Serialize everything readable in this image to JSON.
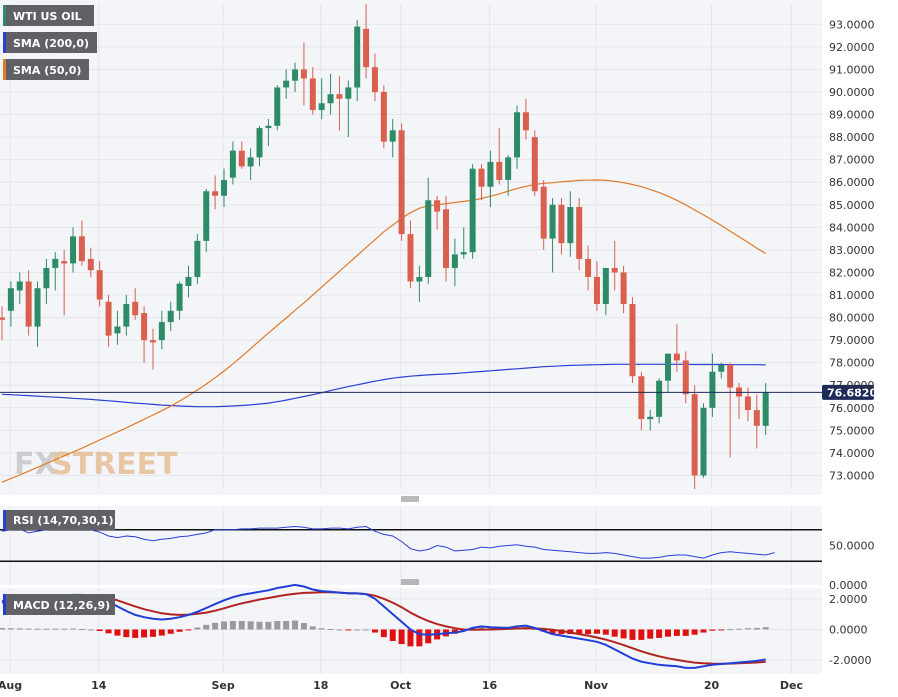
{
  "legend": {
    "instrument": "WTI US OIL",
    "sma200": "SMA (200,0)",
    "sma50": "SMA (50,0)",
    "rsi": "RSI (14,70,30,1)",
    "macd": "MACD (12,26,9)"
  },
  "watermark": {
    "part1": "FX",
    "part2": "STREET"
  },
  "current_price": "76.6820",
  "colors": {
    "up": "#2e8b68",
    "down": "#d9604e",
    "sma200": "#2a3fd4",
    "sma50": "#e07a2a",
    "rsi": "#2a3fd4",
    "macd": "#1f3fd8",
    "signal": "#b2251f",
    "hist_pos": "#9a9a9a",
    "hist_neg": "#e01010",
    "price_tag": "#1e2a5a"
  },
  "x_ticks": [
    {
      "label": "Aug",
      "index": 0
    },
    {
      "label": "14",
      "index": 10
    },
    {
      "label": "Sep",
      "index": 24
    },
    {
      "label": "18",
      "index": 35
    },
    {
      "label": "Oct",
      "index": 44
    },
    {
      "label": "16",
      "index": 54
    },
    {
      "label": "Nov",
      "index": 66
    },
    {
      "label": "20",
      "index": 79
    },
    {
      "label": "Dec",
      "index": 88
    }
  ],
  "chart_data": [
    {
      "type": "candlestick",
      "title": "WTI US OIL",
      "ylim": [
        72.4,
        93.9
      ],
      "y_ticks": [
        "93.0000",
        "92.0000",
        "91.0000",
        "90.0000",
        "89.0000",
        "88.0000",
        "87.0000",
        "86.0000",
        "85.0000",
        "84.0000",
        "83.0000",
        "82.0000",
        "81.0000",
        "80.0000",
        "79.0000",
        "78.0000",
        "77.0000",
        "76.0000",
        "75.0000",
        "74.0000",
        "73.0000"
      ],
      "candles": [
        {
          "o": 80.0,
          "h": 80.5,
          "l": 79.0,
          "c": 79.9
        },
        {
          "o": 80.3,
          "h": 81.6,
          "l": 79.6,
          "c": 81.3
        },
        {
          "o": 81.2,
          "h": 82.0,
          "l": 80.6,
          "c": 81.6
        },
        {
          "o": 81.6,
          "h": 82.1,
          "l": 79.2,
          "c": 79.6
        },
        {
          "o": 79.6,
          "h": 81.6,
          "l": 78.7,
          "c": 81.3
        },
        {
          "o": 81.3,
          "h": 82.6,
          "l": 80.6,
          "c": 82.2
        },
        {
          "o": 82.2,
          "h": 82.9,
          "l": 81.2,
          "c": 82.6
        },
        {
          "o": 82.5,
          "h": 83.0,
          "l": 80.1,
          "c": 82.4
        },
        {
          "o": 82.4,
          "h": 84.0,
          "l": 82.0,
          "c": 83.6
        },
        {
          "o": 83.6,
          "h": 84.3,
          "l": 82.3,
          "c": 82.5
        },
        {
          "o": 82.6,
          "h": 83.1,
          "l": 81.8,
          "c": 82.1
        },
        {
          "o": 82.1,
          "h": 82.5,
          "l": 80.5,
          "c": 80.8
        },
        {
          "o": 80.7,
          "h": 81.0,
          "l": 78.7,
          "c": 79.2
        },
        {
          "o": 79.3,
          "h": 80.3,
          "l": 78.8,
          "c": 79.6
        },
        {
          "o": 79.6,
          "h": 81.0,
          "l": 79.2,
          "c": 80.6
        },
        {
          "o": 80.7,
          "h": 81.3,
          "l": 79.9,
          "c": 80.1
        },
        {
          "o": 80.2,
          "h": 80.5,
          "l": 78.0,
          "c": 79.0
        },
        {
          "o": 79.0,
          "h": 79.5,
          "l": 77.7,
          "c": 78.9
        },
        {
          "o": 79.0,
          "h": 80.3,
          "l": 78.6,
          "c": 79.8
        },
        {
          "o": 79.8,
          "h": 80.7,
          "l": 79.4,
          "c": 80.3
        },
        {
          "o": 80.3,
          "h": 81.6,
          "l": 79.9,
          "c": 81.5
        },
        {
          "o": 81.4,
          "h": 82.3,
          "l": 80.9,
          "c": 81.8
        },
        {
          "o": 81.8,
          "h": 83.7,
          "l": 81.5,
          "c": 83.4
        },
        {
          "o": 83.4,
          "h": 85.7,
          "l": 82.9,
          "c": 85.6
        },
        {
          "o": 85.6,
          "h": 86.3,
          "l": 84.8,
          "c": 85.4
        },
        {
          "o": 85.4,
          "h": 86.6,
          "l": 84.9,
          "c": 86.1
        },
        {
          "o": 86.2,
          "h": 87.8,
          "l": 85.9,
          "c": 87.4
        },
        {
          "o": 87.4,
          "h": 87.8,
          "l": 86.6,
          "c": 86.7
        },
        {
          "o": 86.7,
          "h": 87.5,
          "l": 86.1,
          "c": 87.1
        },
        {
          "o": 87.1,
          "h": 88.5,
          "l": 86.7,
          "c": 88.4
        },
        {
          "o": 88.4,
          "h": 88.8,
          "l": 87.6,
          "c": 88.5
        },
        {
          "o": 88.5,
          "h": 90.3,
          "l": 88.3,
          "c": 90.2
        },
        {
          "o": 90.2,
          "h": 91.0,
          "l": 89.7,
          "c": 90.5
        },
        {
          "o": 90.5,
          "h": 91.3,
          "l": 90.0,
          "c": 91.0
        },
        {
          "o": 91.0,
          "h": 92.2,
          "l": 89.4,
          "c": 90.6
        },
        {
          "o": 90.6,
          "h": 91.1,
          "l": 89.0,
          "c": 89.2
        },
        {
          "o": 89.2,
          "h": 90.6,
          "l": 88.8,
          "c": 89.5
        },
        {
          "o": 89.5,
          "h": 90.8,
          "l": 89.0,
          "c": 89.9
        },
        {
          "o": 89.9,
          "h": 90.7,
          "l": 88.3,
          "c": 89.7
        },
        {
          "o": 89.7,
          "h": 90.5,
          "l": 88.0,
          "c": 90.2
        },
        {
          "o": 90.2,
          "h": 93.2,
          "l": 89.6,
          "c": 92.9
        },
        {
          "o": 92.8,
          "h": 93.9,
          "l": 90.6,
          "c": 91.1
        },
        {
          "o": 91.1,
          "h": 91.7,
          "l": 89.6,
          "c": 90.0
        },
        {
          "o": 90.0,
          "h": 90.3,
          "l": 87.5,
          "c": 87.8
        },
        {
          "o": 87.8,
          "h": 88.8,
          "l": 87.1,
          "c": 88.3
        },
        {
          "o": 88.3,
          "h": 88.6,
          "l": 83.4,
          "c": 83.7
        },
        {
          "o": 83.7,
          "h": 84.3,
          "l": 81.3,
          "c": 81.6
        },
        {
          "o": 81.6,
          "h": 82.3,
          "l": 80.7,
          "c": 81.8
        },
        {
          "o": 81.8,
          "h": 86.2,
          "l": 81.5,
          "c": 85.2
        },
        {
          "o": 85.2,
          "h": 85.4,
          "l": 83.9,
          "c": 84.7
        },
        {
          "o": 84.8,
          "h": 85.4,
          "l": 81.6,
          "c": 82.2
        },
        {
          "o": 82.2,
          "h": 83.5,
          "l": 81.4,
          "c": 82.8
        },
        {
          "o": 82.8,
          "h": 84.0,
          "l": 82.6,
          "c": 82.9
        },
        {
          "o": 82.9,
          "h": 86.8,
          "l": 82.6,
          "c": 86.6
        },
        {
          "o": 86.6,
          "h": 86.8,
          "l": 85.2,
          "c": 85.8
        },
        {
          "o": 85.8,
          "h": 87.4,
          "l": 84.9,
          "c": 86.9
        },
        {
          "o": 86.9,
          "h": 88.4,
          "l": 85.9,
          "c": 86.1
        },
        {
          "o": 86.1,
          "h": 87.2,
          "l": 85.4,
          "c": 87.1
        },
        {
          "o": 87.1,
          "h": 89.4,
          "l": 86.6,
          "c": 89.1
        },
        {
          "o": 89.1,
          "h": 89.7,
          "l": 87.9,
          "c": 88.3
        },
        {
          "o": 88.0,
          "h": 88.3,
          "l": 85.4,
          "c": 85.6
        },
        {
          "o": 85.8,
          "h": 86.1,
          "l": 83.0,
          "c": 83.5
        },
        {
          "o": 83.5,
          "h": 85.3,
          "l": 82.0,
          "c": 85.0
        },
        {
          "o": 85.0,
          "h": 85.3,
          "l": 82.8,
          "c": 83.3
        },
        {
          "o": 83.3,
          "h": 85.6,
          "l": 82.7,
          "c": 84.9
        },
        {
          "o": 84.9,
          "h": 85.3,
          "l": 82.1,
          "c": 82.6
        },
        {
          "o": 82.6,
          "h": 83.2,
          "l": 81.2,
          "c": 81.8
        },
        {
          "o": 81.8,
          "h": 82.5,
          "l": 80.3,
          "c": 80.6
        },
        {
          "o": 80.6,
          "h": 82.2,
          "l": 80.1,
          "c": 82.2
        },
        {
          "o": 82.2,
          "h": 83.4,
          "l": 81.2,
          "c": 82.0
        },
        {
          "o": 82.0,
          "h": 82.3,
          "l": 80.2,
          "c": 80.6
        },
        {
          "o": 80.6,
          "h": 80.9,
          "l": 77.1,
          "c": 77.4
        },
        {
          "o": 77.4,
          "h": 77.6,
          "l": 75.0,
          "c": 75.5
        },
        {
          "o": 75.5,
          "h": 75.9,
          "l": 75.0,
          "c": 75.6
        },
        {
          "o": 75.6,
          "h": 77.3,
          "l": 75.3,
          "c": 77.2
        },
        {
          "o": 77.2,
          "h": 78.4,
          "l": 76.7,
          "c": 78.4
        },
        {
          "o": 78.4,
          "h": 79.7,
          "l": 77.6,
          "c": 78.1
        },
        {
          "o": 78.1,
          "h": 78.5,
          "l": 76.2,
          "c": 76.6
        },
        {
          "o": 76.6,
          "h": 77.0,
          "l": 72.4,
          "c": 73.0
        },
        {
          "o": 73.0,
          "h": 76.2,
          "l": 72.9,
          "c": 76.0
        },
        {
          "o": 76.0,
          "h": 78.4,
          "l": 75.6,
          "c": 77.6
        },
        {
          "o": 77.6,
          "h": 78.0,
          "l": 77.3,
          "c": 77.9
        },
        {
          "o": 77.9,
          "h": 78.0,
          "l": 73.8,
          "c": 76.9
        },
        {
          "o": 76.9,
          "h": 77.1,
          "l": 75.5,
          "c": 76.5
        },
        {
          "o": 76.5,
          "h": 76.9,
          "l": 75.4,
          "c": 75.9
        },
        {
          "o": 75.9,
          "h": 76.6,
          "l": 74.2,
          "c": 75.2
        },
        {
          "o": 75.2,
          "h": 77.1,
          "l": 74.8,
          "c": 76.7
        }
      ],
      "sma200": [
        76.6,
        76.58,
        76.56,
        76.54,
        76.52,
        76.49,
        76.47,
        76.45,
        76.42,
        76.4,
        76.37,
        76.34,
        76.31,
        76.28,
        76.24,
        76.21,
        76.18,
        76.15,
        76.12,
        76.1,
        76.08,
        76.06,
        76.05,
        76.05,
        76.05,
        76.06,
        76.08,
        76.1,
        76.13,
        76.17,
        76.21,
        76.27,
        76.34,
        76.42,
        76.5,
        76.58,
        76.67,
        76.76,
        76.85,
        76.94,
        77.02,
        77.1,
        77.18,
        77.25,
        77.31,
        77.36,
        77.4,
        77.43,
        77.46,
        77.48,
        77.5,
        77.52,
        77.55,
        77.58,
        77.61,
        77.64,
        77.67,
        77.7,
        77.73,
        77.76,
        77.79,
        77.82,
        77.84,
        77.86,
        77.88,
        77.89,
        77.9,
        77.91,
        77.92,
        77.93,
        77.93,
        77.93,
        77.93,
        77.93,
        77.93,
        77.93,
        77.93,
        77.93,
        77.92,
        77.92,
        77.92,
        77.92,
        77.91,
        77.91,
        77.91,
        77.91,
        77.9
      ],
      "sma50": [
        72.7,
        72.86,
        73.02,
        73.19,
        73.36,
        73.53,
        73.7,
        73.87,
        74.04,
        74.21,
        74.39,
        74.57,
        74.75,
        74.93,
        75.11,
        75.3,
        75.49,
        75.68,
        75.87,
        76.07,
        76.3,
        76.54,
        76.79,
        77.05,
        77.33,
        77.63,
        77.95,
        78.28,
        78.62,
        78.97,
        79.31,
        79.65,
        79.98,
        80.32,
        80.65,
        81.0,
        81.35,
        81.7,
        82.05,
        82.4,
        82.75,
        83.1,
        83.45,
        83.8,
        84.1,
        84.4,
        84.65,
        84.85,
        84.95,
        85.0,
        85.05,
        85.1,
        85.15,
        85.2,
        85.28,
        85.38,
        85.48,
        85.6,
        85.72,
        85.82,
        85.9,
        85.95,
        85.98,
        86.02,
        86.05,
        86.08,
        86.09,
        86.1,
        86.08,
        86.04,
        85.98,
        85.9,
        85.8,
        85.68,
        85.54,
        85.38,
        85.2,
        85.0,
        84.77,
        84.55,
        84.32,
        84.08,
        83.83,
        83.58,
        83.33,
        83.08,
        82.84
      ]
    },
    {
      "type": "line",
      "title": "RSI (14,70,30,1)",
      "ylim": [
        0,
        100
      ],
      "y_ticks": [
        "50.0000",
        "0.0000"
      ],
      "levels": [
        70,
        30
      ],
      "values": [
        68,
        70,
        71,
        66,
        68,
        70,
        71,
        72,
        73,
        71,
        70,
        67,
        62,
        60,
        62,
        61,
        58,
        56,
        58,
        59,
        61,
        62,
        64,
        66,
        70,
        70,
        70,
        71,
        71,
        72,
        72,
        72,
        73,
        74,
        73,
        71,
        71,
        72,
        72,
        71,
        73,
        74,
        68,
        64,
        62,
        55,
        46,
        43,
        45,
        50,
        48,
        43,
        44,
        45,
        48,
        47,
        49,
        50,
        51,
        49,
        48,
        45,
        44,
        43,
        42,
        41,
        40,
        40,
        41,
        40,
        38,
        36,
        34,
        34,
        35,
        37,
        38,
        38,
        36,
        34,
        38,
        41,
        42,
        41,
        40,
        39,
        38,
        41
      ]
    },
    {
      "type": "bar+line",
      "title": "MACD (12,26,9)",
      "ylim": [
        -2.9,
        2.7
      ],
      "y_ticks": [
        "2.0000",
        "0.0000",
        "-2.0000"
      ],
      "macd": [
        1.85,
        1.9,
        1.95,
        2.0,
        2.05,
        2.1,
        2.15,
        2.2,
        2.25,
        2.25,
        2.2,
        2.05,
        1.8,
        1.5,
        1.2,
        0.95,
        0.8,
        0.7,
        0.65,
        0.7,
        0.8,
        0.95,
        1.15,
        1.4,
        1.65,
        1.9,
        2.1,
        2.25,
        2.35,
        2.45,
        2.55,
        2.7,
        2.8,
        2.9,
        2.8,
        2.6,
        2.5,
        2.45,
        2.4,
        2.35,
        2.35,
        2.3,
        2.0,
        1.5,
        1.0,
        0.5,
        0.0,
        -0.3,
        -0.35,
        -0.3,
        -0.25,
        -0.2,
        -0.1,
        0.1,
        0.2,
        0.15,
        0.12,
        0.1,
        0.2,
        0.25,
        0.1,
        -0.1,
        -0.3,
        -0.4,
        -0.5,
        -0.6,
        -0.7,
        -0.8,
        -1.0,
        -1.3,
        -1.6,
        -1.9,
        -2.1,
        -2.2,
        -2.3,
        -2.35,
        -2.4,
        -2.5,
        -2.5,
        -2.4,
        -2.3,
        -2.25,
        -2.2,
        -2.15,
        -2.1,
        -2.05,
        -1.95
      ],
      "signal": [
        1.75,
        1.82,
        1.88,
        1.94,
        2.0,
        2.05,
        2.1,
        2.15,
        2.19,
        2.22,
        2.2,
        2.15,
        2.05,
        1.9,
        1.7,
        1.5,
        1.32,
        1.18,
        1.05,
        0.98,
        0.95,
        0.97,
        1.02,
        1.1,
        1.22,
        1.38,
        1.55,
        1.7,
        1.82,
        1.95,
        2.05,
        2.15,
        2.25,
        2.32,
        2.38,
        2.4,
        2.42,
        2.42,
        2.4,
        2.37,
        2.35,
        2.3,
        2.2,
        2.0,
        1.75,
        1.45,
        1.1,
        0.8,
        0.55,
        0.35,
        0.2,
        0.08,
        0.0,
        -0.02,
        -0.01,
        0.0,
        0.02,
        0.04,
        0.06,
        0.08,
        0.07,
        0.04,
        -0.02,
        -0.1,
        -0.2,
        -0.3,
        -0.4,
        -0.52,
        -0.66,
        -0.83,
        -1.02,
        -1.22,
        -1.42,
        -1.6,
        -1.75,
        -1.88,
        -1.98,
        -2.08,
        -2.16,
        -2.2,
        -2.22,
        -2.23,
        -2.22,
        -2.2,
        -2.18,
        -2.15,
        -2.1
      ],
      "histogram": [
        0.1,
        0.08,
        0.07,
        0.06,
        0.05,
        0.05,
        0.05,
        0.05,
        0.06,
        0.03,
        0.0,
        -0.1,
        -0.25,
        -0.4,
        -0.5,
        -0.55,
        -0.52,
        -0.48,
        -0.4,
        -0.28,
        -0.15,
        -0.02,
        0.13,
        0.3,
        0.43,
        0.52,
        0.55,
        0.55,
        0.53,
        0.5,
        0.5,
        0.55,
        0.55,
        0.58,
        0.42,
        0.2,
        0.08,
        0.03,
        0.0,
        -0.02,
        0.0,
        0.0,
        -0.2,
        -0.5,
        -0.75,
        -0.95,
        -1.1,
        -1.1,
        -0.9,
        -0.65,
        -0.45,
        -0.28,
        -0.1,
        0.12,
        0.21,
        0.15,
        0.1,
        0.06,
        0.14,
        0.17,
        0.03,
        -0.14,
        -0.28,
        -0.3,
        -0.3,
        -0.3,
        -0.3,
        -0.28,
        -0.34,
        -0.47,
        -0.58,
        -0.68,
        -0.68,
        -0.6,
        -0.55,
        -0.47,
        -0.42,
        -0.42,
        -0.34,
        -0.2,
        -0.08,
        -0.02,
        0.02,
        0.05,
        0.08,
        0.1,
        0.15
      ]
    }
  ]
}
